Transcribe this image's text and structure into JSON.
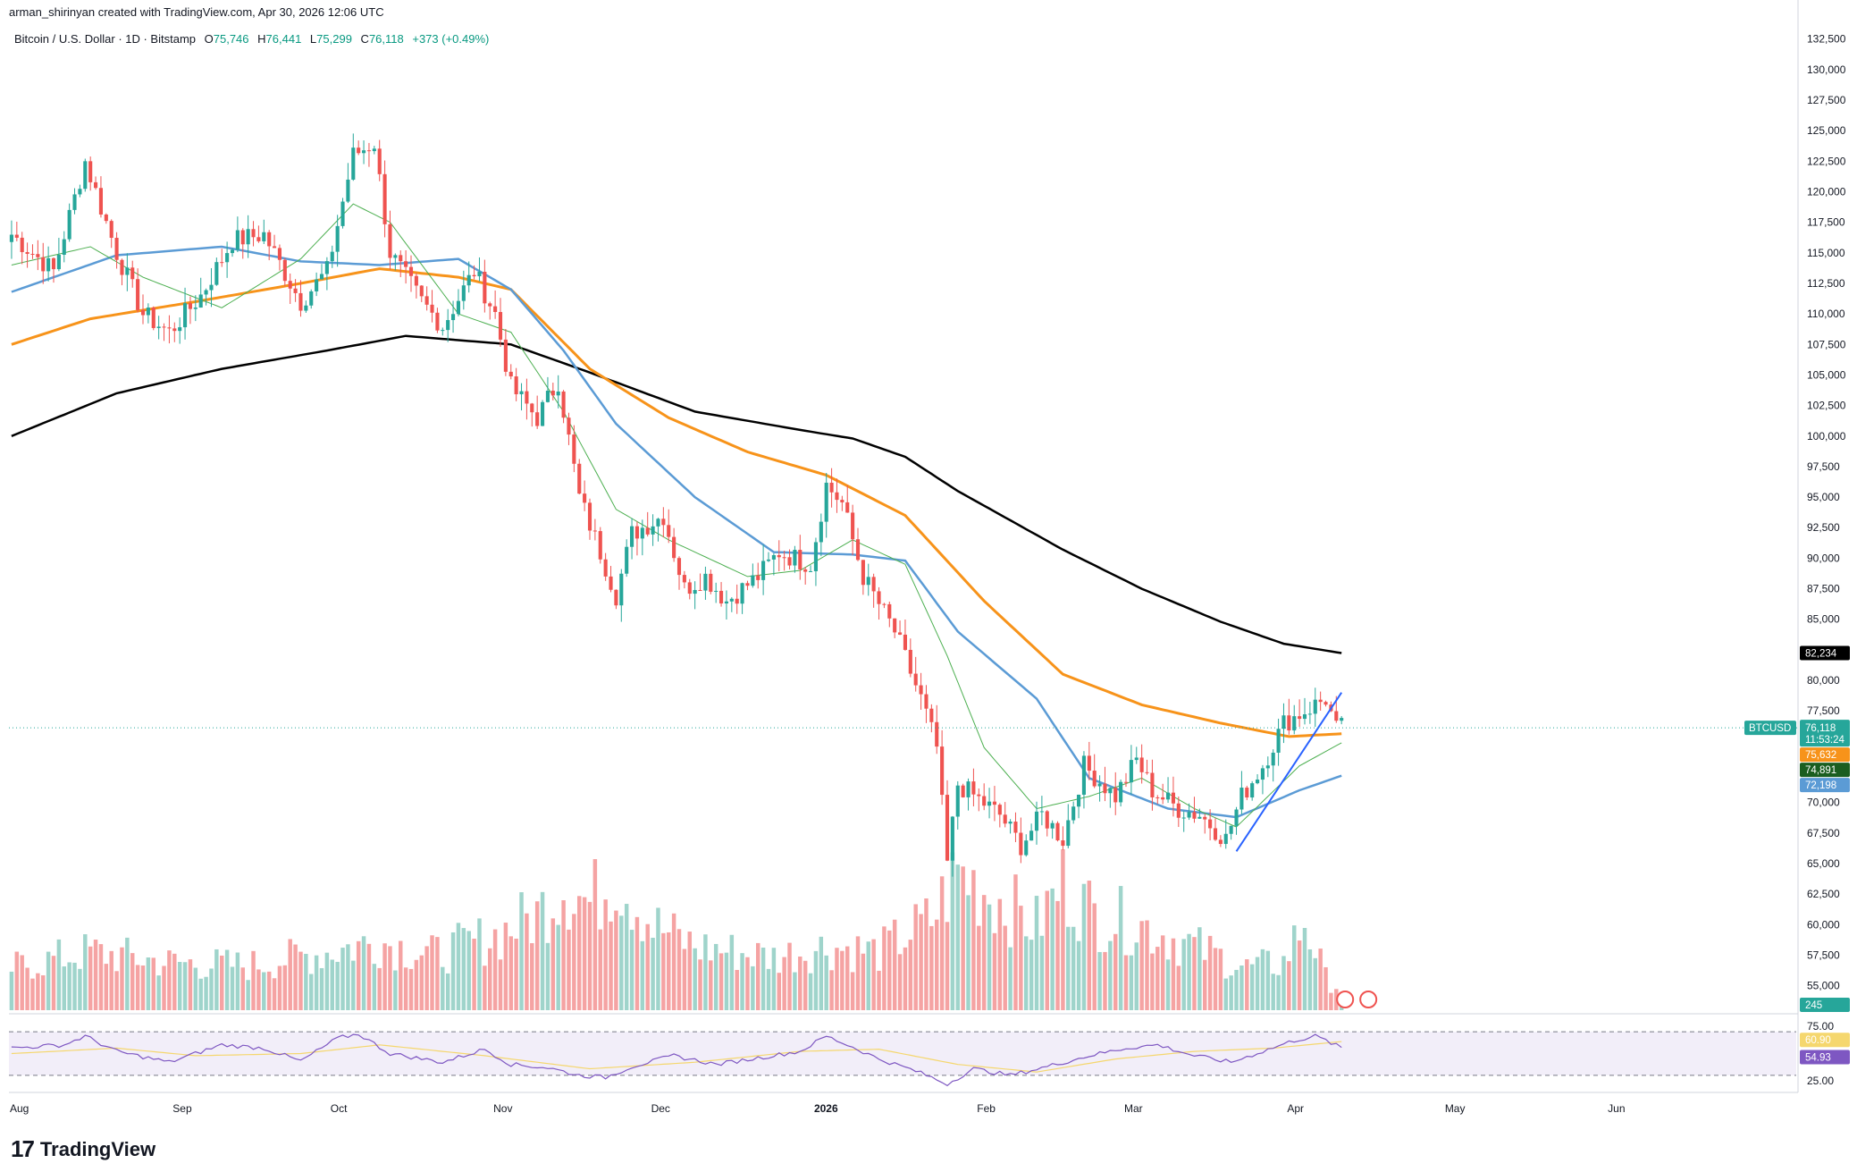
{
  "header": {
    "author_line": "arman_shirinyan created with TradingView.com, Apr 30, 2026 12:06 UTC"
  },
  "legend": {
    "symbol": "Bitcoin / U.S. Dollar · 1D · Bitstamp",
    "o_label": "O",
    "o_value": "75,746",
    "h_label": "H",
    "h_value": "76,441",
    "l_label": "L",
    "l_value": "75,299",
    "c_label": "C",
    "c_value": "76,118",
    "change": "+373 (+0.49%)"
  },
  "footer": {
    "brand": "TradingView"
  },
  "colors": {
    "up": "#26a69a",
    "down": "#ef5350",
    "vol_up": "#9fd4cb",
    "vol_down": "#f5a3a3",
    "ma200": "#000000",
    "ma100": "#f7931a",
    "ma50": "#5b9bd5",
    "ma20": "#4caf50",
    "rsi": "#7e57c2",
    "rsi_ma": "#f5d76e",
    "trend": "#2962ff"
  },
  "chart_data": {
    "type": "candlestick",
    "symbol_badge": "BTCUSD",
    "price_axis": {
      "ylim": [
        53000,
        133500
      ],
      "ticks": [
        "132,500",
        "130,000",
        "127,500",
        "125,000",
        "122,500",
        "120,000",
        "117,500",
        "115,000",
        "112,500",
        "110,000",
        "107,500",
        "105,000",
        "102,500",
        "100,000",
        "97,500",
        "95,000",
        "92,500",
        "90,000",
        "87,500",
        "85,000",
        "80,000",
        "77,500",
        "70,000",
        "67,500",
        "65,000",
        "62,500",
        "60,000",
        "57,500",
        "55,000"
      ]
    },
    "rsi_axis": {
      "ylim": [
        20,
        80
      ],
      "ticks": [
        "75.00",
        "25.00"
      ],
      "upper": 70,
      "lower": 30
    },
    "time_axis": {
      "labels": [
        "Aug",
        "Sep",
        "Oct",
        "Nov",
        "Dec",
        "2026",
        "Feb",
        "Mar",
        "Apr",
        "May",
        "Jun"
      ],
      "label_index": [
        0,
        31,
        61,
        92,
        122,
        153,
        184,
        212,
        243,
        273,
        304
      ],
      "total_slots": 340
    },
    "last_values": {
      "price": "76,118",
      "countdown": "11:53:24",
      "ma200": "82,234",
      "ma100": "75,632",
      "ma20": "74,891",
      "ma50": "72,198",
      "volume": "245",
      "rsi_ma": "60.90",
      "rsi": "54.93"
    },
    "close_keypoints": [
      [
        0,
        116500
      ],
      [
        8,
        113500
      ],
      [
        14,
        122500
      ],
      [
        20,
        115000
      ],
      [
        25,
        110000
      ],
      [
        30,
        108500
      ],
      [
        36,
        111500
      ],
      [
        42,
        116000
      ],
      [
        48,
        116500
      ],
      [
        55,
        111000
      ],
      [
        60,
        113500
      ],
      [
        65,
        123000
      ],
      [
        69,
        124000
      ],
      [
        72,
        115000
      ],
      [
        78,
        111000
      ],
      [
        82,
        109000
      ],
      [
        88,
        113500
      ],
      [
        92,
        110000
      ],
      [
        95,
        104000
      ],
      [
        100,
        101500
      ],
      [
        104,
        104500
      ],
      [
        108,
        95000
      ],
      [
        112,
        90500
      ],
      [
        115,
        87000
      ],
      [
        118,
        92000
      ],
      [
        124,
        93500
      ],
      [
        128,
        87500
      ],
      [
        132,
        88500
      ],
      [
        136,
        86500
      ],
      [
        142,
        88500
      ],
      [
        146,
        90500
      ],
      [
        152,
        89500
      ],
      [
        155,
        96000
      ],
      [
        158,
        94500
      ],
      [
        162,
        88500
      ],
      [
        168,
        84000
      ],
      [
        173,
        78500
      ],
      [
        176,
        74500
      ],
      [
        178,
        65000
      ],
      [
        180,
        71500
      ],
      [
        188,
        69000
      ],
      [
        192,
        66500
      ],
      [
        196,
        69000
      ],
      [
        200,
        67000
      ],
      [
        204,
        73000
      ],
      [
        210,
        70500
      ],
      [
        214,
        73500
      ],
      [
        217,
        71000
      ],
      [
        222,
        69500
      ],
      [
        226,
        69000
      ],
      [
        231,
        67000
      ],
      [
        234,
        70500
      ],
      [
        238,
        73000
      ],
      [
        242,
        76500
      ],
      [
        246,
        77500
      ],
      [
        250,
        78500
      ],
      [
        252,
        76000
      ],
      [
        253,
        76118
      ]
    ],
    "ma200_keypoints": [
      [
        0,
        100000
      ],
      [
        20,
        103500
      ],
      [
        40,
        105500
      ],
      [
        60,
        107000
      ],
      [
        75,
        108200
      ],
      [
        95,
        107500
      ],
      [
        110,
        105200
      ],
      [
        130,
        102000
      ],
      [
        150,
        100500
      ],
      [
        160,
        99800
      ],
      [
        170,
        98300
      ],
      [
        180,
        95500
      ],
      [
        200,
        90700
      ],
      [
        215,
        87500
      ],
      [
        230,
        84800
      ],
      [
        242,
        83000
      ],
      [
        253,
        82234
      ]
    ],
    "ma100_keypoints": [
      [
        0,
        107500
      ],
      [
        15,
        109600
      ],
      [
        35,
        111000
      ],
      [
        55,
        112500
      ],
      [
        70,
        113700
      ],
      [
        85,
        113000
      ],
      [
        95,
        112000
      ],
      [
        110,
        105500
      ],
      [
        125,
        101500
      ],
      [
        140,
        98700
      ],
      [
        155,
        96800
      ],
      [
        170,
        93500
      ],
      [
        185,
        86500
      ],
      [
        200,
        80500
      ],
      [
        215,
        78000
      ],
      [
        230,
        76500
      ],
      [
        243,
        75400
      ],
      [
        253,
        75632
      ]
    ],
    "ma50_keypoints": [
      [
        0,
        111800
      ],
      [
        20,
        114800
      ],
      [
        40,
        115500
      ],
      [
        55,
        114300
      ],
      [
        70,
        114000
      ],
      [
        85,
        114500
      ],
      [
        95,
        112000
      ],
      [
        105,
        107000
      ],
      [
        115,
        101000
      ],
      [
        130,
        95000
      ],
      [
        145,
        90500
      ],
      [
        160,
        90300
      ],
      [
        170,
        89800
      ],
      [
        180,
        84000
      ],
      [
        195,
        78500
      ],
      [
        205,
        72000
      ],
      [
        220,
        69500
      ],
      [
        233,
        68800
      ],
      [
        245,
        71000
      ],
      [
        253,
        72198
      ]
    ],
    "ma20_keypoints": [
      [
        0,
        114000
      ],
      [
        15,
        115500
      ],
      [
        25,
        113000
      ],
      [
        40,
        110500
      ],
      [
        55,
        114500
      ],
      [
        65,
        119000
      ],
      [
        72,
        117500
      ],
      [
        85,
        110000
      ],
      [
        95,
        108500
      ],
      [
        105,
        102000
      ],
      [
        115,
        94000
      ],
      [
        125,
        91500
      ],
      [
        140,
        88500
      ],
      [
        150,
        89000
      ],
      [
        160,
        91500
      ],
      [
        170,
        89500
      ],
      [
        178,
        82000
      ],
      [
        185,
        74500
      ],
      [
        195,
        69500
      ],
      [
        205,
        70500
      ],
      [
        215,
        72000
      ],
      [
        225,
        69500
      ],
      [
        233,
        68000
      ],
      [
        245,
        73000
      ],
      [
        253,
        74891
      ]
    ],
    "rsi_keypoints": [
      [
        0,
        55
      ],
      [
        10,
        58
      ],
      [
        14,
        66
      ],
      [
        20,
        52
      ],
      [
        30,
        42
      ],
      [
        40,
        58
      ],
      [
        48,
        55
      ],
      [
        55,
        43
      ],
      [
        62,
        64
      ],
      [
        66,
        68
      ],
      [
        72,
        50
      ],
      [
        82,
        42
      ],
      [
        90,
        54
      ],
      [
        95,
        40
      ],
      [
        102,
        37
      ],
      [
        108,
        30
      ],
      [
        113,
        28
      ],
      [
        118,
        38
      ],
      [
        126,
        48
      ],
      [
        134,
        40
      ],
      [
        142,
        46
      ],
      [
        150,
        52
      ],
      [
        155,
        66
      ],
      [
        160,
        56
      ],
      [
        165,
        45
      ],
      [
        172,
        34
      ],
      [
        178,
        22
      ],
      [
        183,
        36
      ],
      [
        190,
        30
      ],
      [
        197,
        38
      ],
      [
        205,
        48
      ],
      [
        212,
        55
      ],
      [
        218,
        58
      ],
      [
        225,
        48
      ],
      [
        232,
        42
      ],
      [
        238,
        52
      ],
      [
        244,
        62
      ],
      [
        248,
        66
      ],
      [
        250,
        62
      ],
      [
        253,
        55
      ]
    ],
    "rsi_ma_keypoints": [
      [
        0,
        50
      ],
      [
        20,
        55
      ],
      [
        35,
        48
      ],
      [
        55,
        50
      ],
      [
        70,
        58
      ],
      [
        90,
        48
      ],
      [
        110,
        36
      ],
      [
        130,
        42
      ],
      [
        150,
        52
      ],
      [
        165,
        54
      ],
      [
        180,
        40
      ],
      [
        195,
        33
      ],
      [
        210,
        45
      ],
      [
        225,
        52
      ],
      [
        240,
        55
      ],
      [
        253,
        61
      ]
    ],
    "volume_keypoints": [
      [
        0,
        40
      ],
      [
        15,
        55
      ],
      [
        30,
        45
      ],
      [
        45,
        42
      ],
      [
        60,
        55
      ],
      [
        70,
        65
      ],
      [
        80,
        52
      ],
      [
        92,
        70
      ],
      [
        100,
        90
      ],
      [
        105,
        120
      ],
      [
        110,
        100
      ],
      [
        115,
        130
      ],
      [
        122,
        80
      ],
      [
        130,
        60
      ],
      [
        145,
        50
      ],
      [
        155,
        60
      ],
      [
        165,
        55
      ],
      [
        175,
        85
      ],
      [
        180,
        130
      ],
      [
        186,
        110
      ],
      [
        195,
        80
      ],
      [
        200,
        120
      ],
      [
        206,
        90
      ],
      [
        215,
        80
      ],
      [
        225,
        60
      ],
      [
        235,
        40
      ],
      [
        242,
        45
      ],
      [
        246,
        85
      ],
      [
        250,
        30
      ],
      [
        253,
        20
      ]
    ],
    "trendline": [
      [
        233,
        66000
      ],
      [
        253,
        79000
      ]
    ]
  }
}
